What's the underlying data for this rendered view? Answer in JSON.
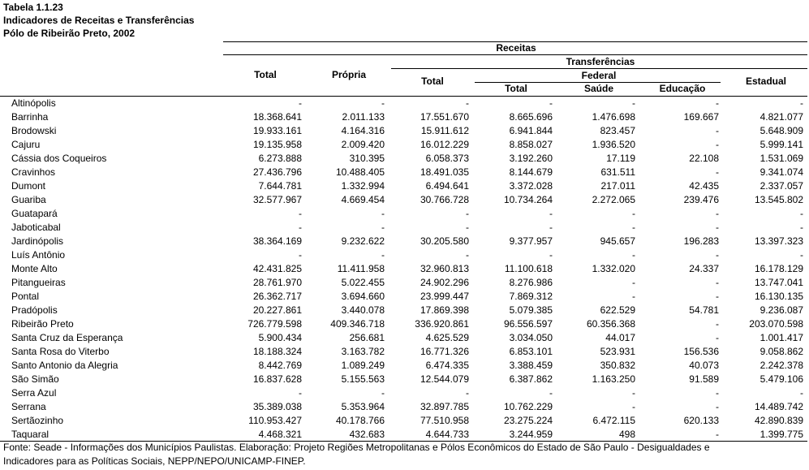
{
  "title": [
    "Tabela 1.1.23",
    "Indicadores de Receitas e Transferências",
    "Pólo de Ribeirão Preto, 2002"
  ],
  "table": {
    "header": {
      "receitas": "Receitas",
      "transferencias": "Transferências",
      "federal": "Federal",
      "columns": [
        "Total",
        "Própria",
        "Total",
        "Total",
        "Saúde",
        "Educação",
        "Estadual"
      ]
    },
    "rows": [
      [
        "Altinópolis",
        "-",
        "-",
        "-",
        "-",
        "-",
        "-",
        "-"
      ],
      [
        "Barrinha",
        "18.368.641",
        "2.011.133",
        "17.551.670",
        "8.665.696",
        "1.476.698",
        "169.667",
        "4.821.077"
      ],
      [
        "Brodowski",
        "19.933.161",
        "4.164.316",
        "15.911.612",
        "6.941.844",
        "823.457",
        "-",
        "5.648.909"
      ],
      [
        "Cajuru",
        "19.135.958",
        "2.009.420",
        "16.012.229",
        "8.858.027",
        "1.936.520",
        "-",
        "5.999.141"
      ],
      [
        "Cássia dos Coqueiros",
        "6.273.888",
        "310.395",
        "6.058.373",
        "3.192.260",
        "17.119",
        "22.108",
        "1.531.069"
      ],
      [
        "Cravinhos",
        "27.436.796",
        "10.488.405",
        "18.491.035",
        "8.144.679",
        "631.511",
        "-",
        "9.341.074"
      ],
      [
        "Dumont",
        "7.644.781",
        "1.332.994",
        "6.494.641",
        "3.372.028",
        "217.011",
        "42.435",
        "2.337.057"
      ],
      [
        "Guariba",
        "32.577.967",
        "4.669.454",
        "30.766.728",
        "10.734.264",
        "2.272.065",
        "239.476",
        "13.545.802"
      ],
      [
        "Guatapará",
        "-",
        "-",
        "-",
        "-",
        "-",
        "-",
        "-"
      ],
      [
        "Jaboticabal",
        "-",
        "-",
        "-",
        "-",
        "-",
        "-",
        "-"
      ],
      [
        "Jardinópolis",
        "38.364.169",
        "9.232.622",
        "30.205.580",
        "9.377.957",
        "945.657",
        "196.283",
        "13.397.323"
      ],
      [
        "Luís Antônio",
        "-",
        "-",
        "-",
        "-",
        "-",
        "-",
        "-"
      ],
      [
        "Monte Alto",
        "42.431.825",
        "11.411.958",
        "32.960.813",
        "11.100.618",
        "1.332.020",
        "24.337",
        "16.178.129"
      ],
      [
        "Pitangueiras",
        "28.761.970",
        "5.022.455",
        "24.902.296",
        "8.276.986",
        "-",
        "-",
        "13.747.041"
      ],
      [
        "Pontal",
        "26.362.717",
        "3.694.660",
        "23.999.447",
        "7.869.312",
        "-",
        "-",
        "16.130.135"
      ],
      [
        "Pradópolis",
        "20.227.861",
        "3.440.078",
        "17.869.398",
        "5.079.385",
        "622.529",
        "54.781",
        "9.236.087"
      ],
      [
        "Ribeirão Preto",
        "726.779.598",
        "409.346.718",
        "336.920.861",
        "96.556.597",
        "60.356.368",
        "-",
        "203.070.598"
      ],
      [
        "Santa Cruz da Esperança",
        "5.900.434",
        "256.681",
        "4.625.529",
        "3.034.050",
        "44.017",
        "-",
        "1.001.417"
      ],
      [
        "Santa Rosa do Viterbo",
        "18.188.324",
        "3.163.782",
        "16.771.326",
        "6.853.101",
        "523.931",
        "156.536",
        "9.058.862"
      ],
      [
        "Santo Antonio da Alegria",
        "8.442.769",
        "1.089.249",
        "6.474.335",
        "3.388.459",
        "350.832",
        "40.073",
        "2.242.378"
      ],
      [
        "São Simão",
        "16.837.628",
        "5.155.563",
        "12.544.079",
        "6.387.862",
        "1.163.250",
        "91.589",
        "5.479.106"
      ],
      [
        "Serra Azul",
        "-",
        "-",
        "-",
        "-",
        "-",
        "-",
        "-"
      ],
      [
        "Serrana",
        "35.389.038",
        "5.353.964",
        "32.897.785",
        "10.762.229",
        "-",
        "-",
        "14.489.742"
      ],
      [
        "Sertãozinho",
        "110.953.427",
        "40.178.766",
        "77.510.958",
        "23.275.224",
        "6.472.115",
        "620.133",
        "42.890.839"
      ],
      [
        "Taquaral",
        "4.468.321",
        "432.683",
        "4.644.733",
        "3.244.959",
        "498",
        "-",
        "1.399.775"
      ]
    ]
  },
  "footer": [
    "Fonte: Seade - Informações dos Municípios Paulistas. Elaboração: Projeto Regiões Metropolitanas e Pólos Econômicos do Estado de São Paulo - Desigualdades e",
    "Indicadores para as Políticas Sociais, NEPP/NEPO/UNICAMP-FINEP."
  ]
}
